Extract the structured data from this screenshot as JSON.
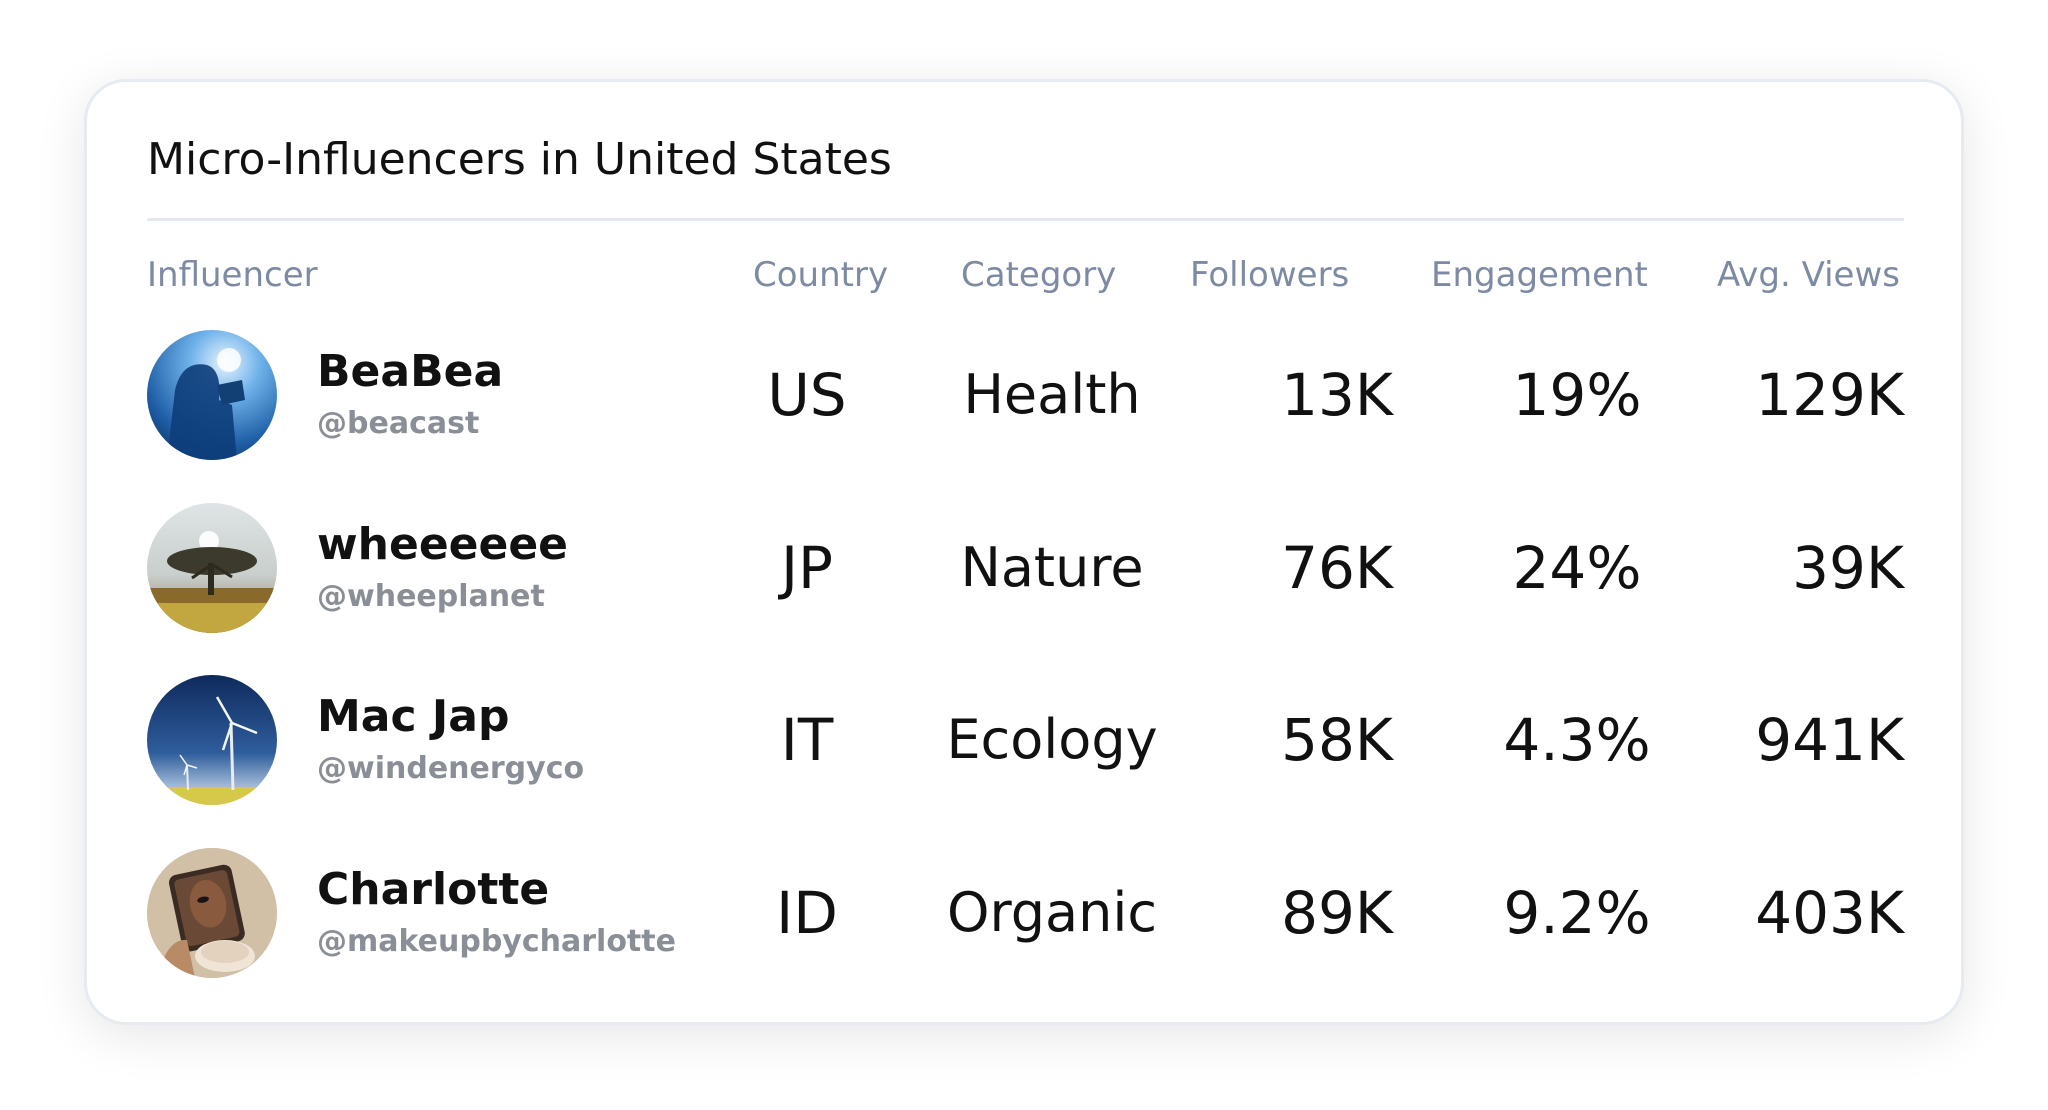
{
  "card": {
    "title": "Micro-Influencers in United States",
    "columns": {
      "influencer": "Influencer",
      "country": "Country",
      "category": "Category",
      "followers": "Followers",
      "engagement": "Engagement",
      "avg_views": "Avg. Views"
    },
    "rows": [
      {
        "name": "BeaBea",
        "handle": "@beacast",
        "avatar_icon": "person-with-camera-photo",
        "country": "US",
        "category": "Health",
        "followers": "13K",
        "engagement": "19%",
        "avg_views": "129K"
      },
      {
        "name": "wheeeeee",
        "handle": "@wheeplanet",
        "avatar_icon": "savanna-tree-sunset-photo",
        "country": "JP",
        "category": "Nature",
        "followers": "76K",
        "engagement": "24%",
        "avg_views": "39K"
      },
      {
        "name": "Mac Jap",
        "handle": "@windenergyco",
        "avatar_icon": "wind-turbine-photo",
        "country": "IT",
        "category": "Ecology",
        "followers": "58K",
        "engagement": "4.3%",
        "avg_views": "941K"
      },
      {
        "name": "Charlotte",
        "handle": "@makeupbycharlotte",
        "avatar_icon": "makeup-mirror-photo",
        "country": "ID",
        "category": "Organic",
        "followers": "89K",
        "engagement": "9.2%",
        "avg_views": "403K"
      }
    ]
  },
  "colors": {
    "header_text": "#7c8aa3",
    "handle_text": "#8a8e96",
    "body_text": "#111111",
    "divider": "#e4e8ef"
  }
}
